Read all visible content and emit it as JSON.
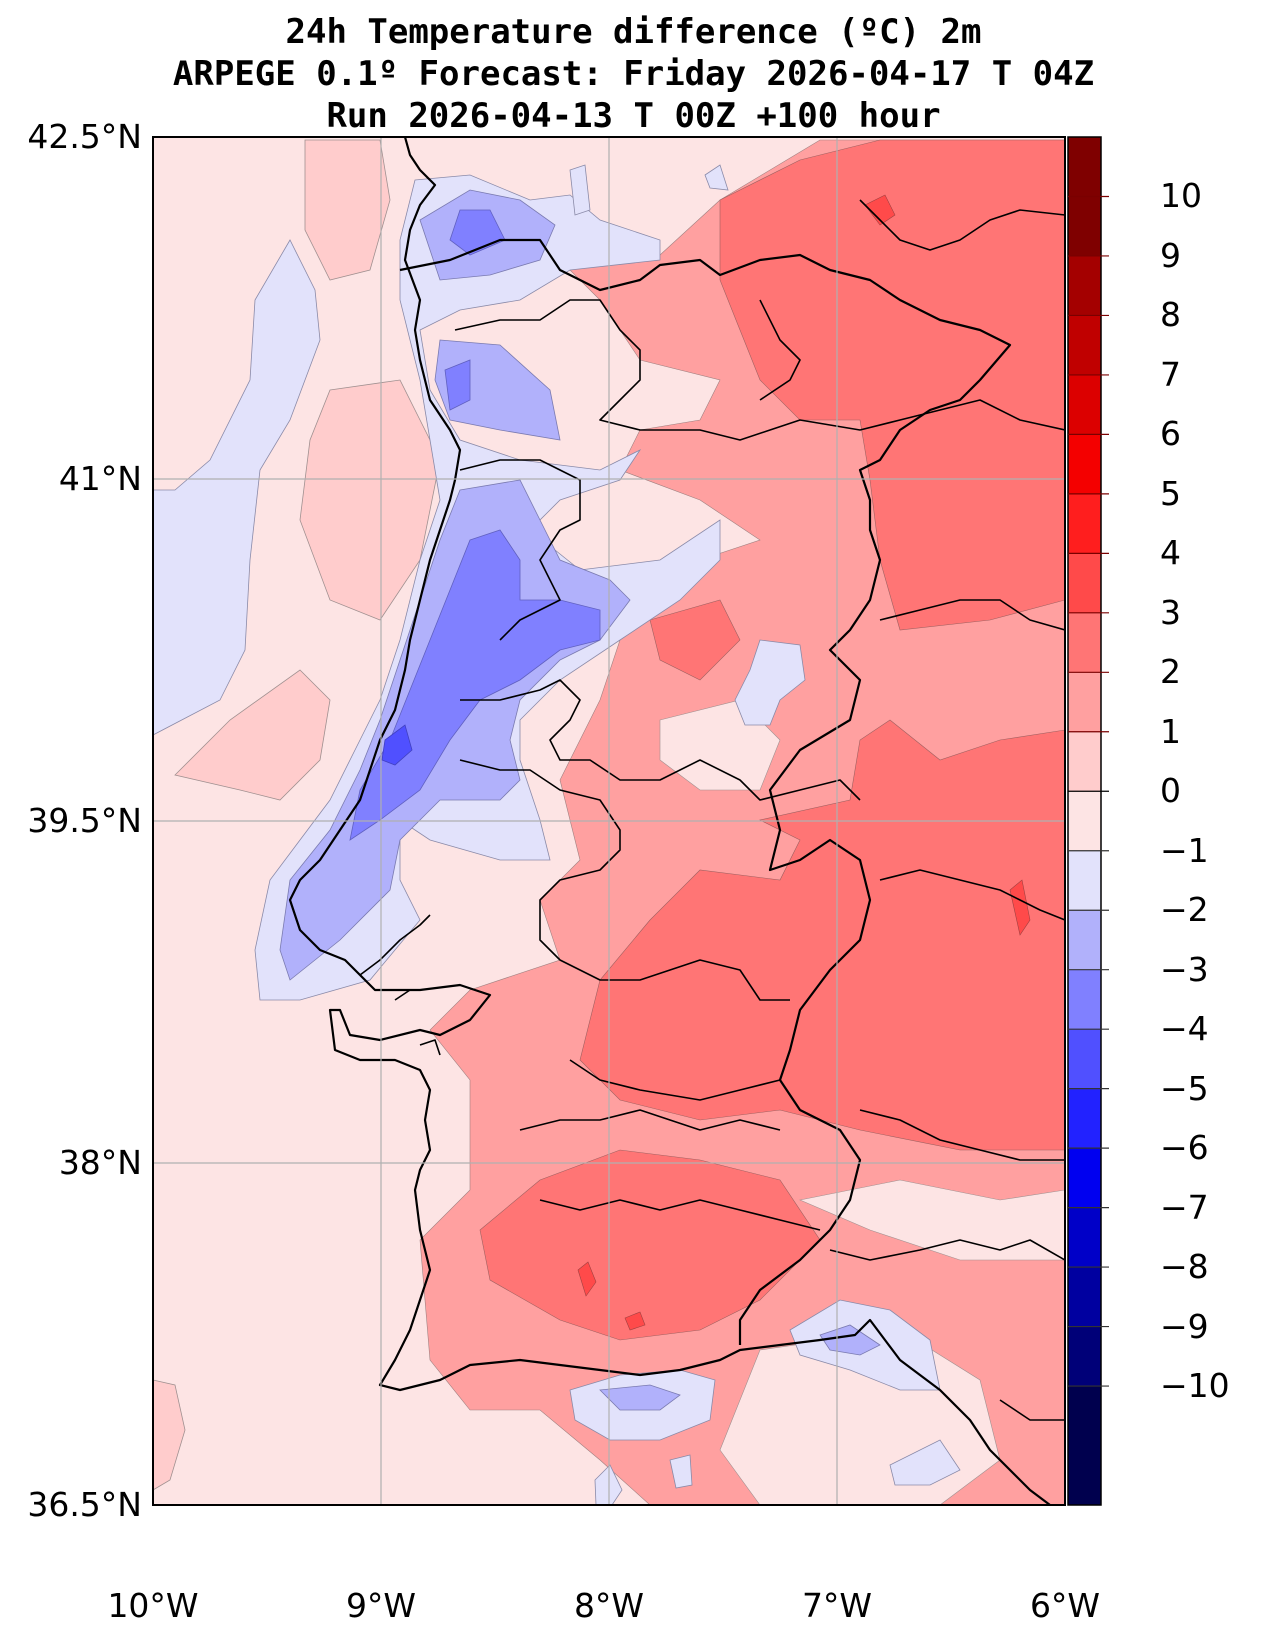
{
  "title": {
    "line1": "24h Temperature difference (ºC) 2m",
    "line2": "ARPEGE 0.1º Forecast: Friday 2026-04-17 T 04Z",
    "line3": "Run 2026-04-13 T 00Z +100 hour"
  },
  "map": {
    "extent": {
      "lon": [
        -10,
        -6
      ],
      "lat": [
        36.5,
        42.5
      ]
    },
    "lat_ticks": [
      "42.5°N",
      "41°N",
      "39.5°N",
      "38°N",
      "36.5°N"
    ],
    "lon_ticks": [
      "10°W",
      "9°W",
      "8°W",
      "7°W",
      "6°W"
    ],
    "grid": true,
    "ocean_anomaly_color": "#fde4e4"
  },
  "colorbar": {
    "levels": [
      "10",
      "9",
      "8",
      "7",
      "6",
      "5",
      "4",
      "3",
      "2",
      "1",
      "0",
      "−1",
      "−2",
      "−3",
      "−4",
      "−5",
      "−6",
      "−7",
      "−8",
      "−9",
      "−10"
    ],
    "colors": [
      "#7f0000",
      "#a40000",
      "#c00000",
      "#dc0000",
      "#f40000",
      "#ff1e1e",
      "#ff4a4a",
      "#ff7575",
      "#ffa0a0",
      "#ffcccc",
      "#fde4e4",
      "#e2e2fb",
      "#b1b1fb",
      "#8080ff",
      "#5050ff",
      "#2222ff",
      "#0000f0",
      "#0000c8",
      "#0000a0",
      "#000078",
      "#00004e"
    ]
  }
}
